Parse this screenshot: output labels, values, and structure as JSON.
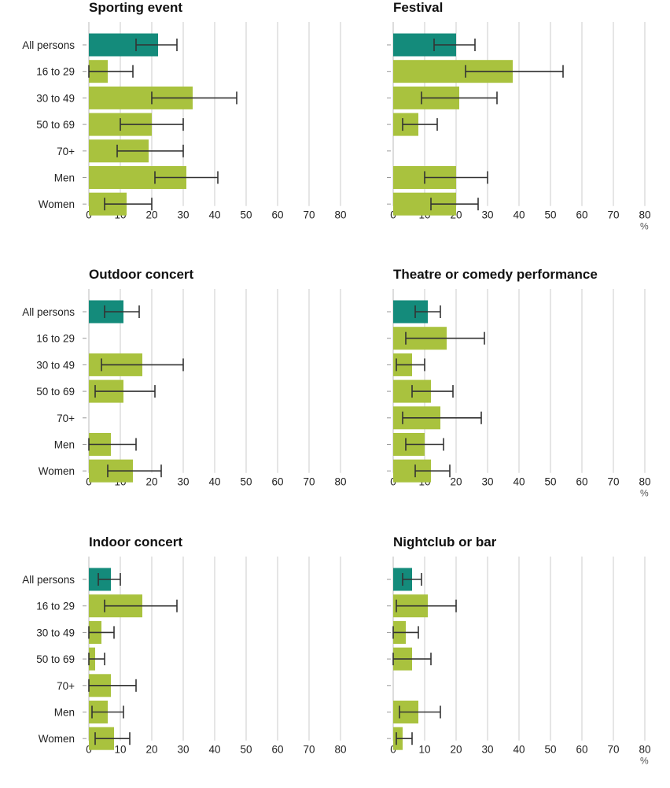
{
  "chart_data": [
    {
      "type": "bar",
      "title": "Sporting event",
      "categories": [
        "All persons",
        "16 to 29",
        "30 to 49",
        "50 to 69",
        "70+",
        "Men",
        "Women"
      ],
      "values": [
        22,
        6,
        33,
        20,
        19,
        31,
        12
      ],
      "error_low": [
        15,
        0,
        20,
        10,
        9,
        21,
        5
      ],
      "error_high": [
        28,
        14,
        47,
        30,
        30,
        41,
        20
      ],
      "xlim": [
        0,
        80
      ],
      "ticks": [
        "0",
        "10",
        "20",
        "30",
        "40",
        "50",
        "60",
        "70",
        "80"
      ],
      "unit": ""
    },
    {
      "type": "bar",
      "title": "Festival",
      "categories": [
        "All persons",
        "16 to 29",
        "30 to 49",
        "50 to 69",
        "70+",
        "Men",
        "Women"
      ],
      "values": [
        20,
        38,
        21,
        8,
        null,
        20,
        20
      ],
      "error_low": [
        13,
        23,
        9,
        3,
        null,
        10,
        12
      ],
      "error_high": [
        26,
        54,
        33,
        14,
        null,
        30,
        27
      ],
      "xlim": [
        0,
        80
      ],
      "ticks": [
        "0",
        "10",
        "20",
        "30",
        "40",
        "50",
        "60",
        "70",
        "80"
      ],
      "unit": "%"
    },
    {
      "type": "bar",
      "title": "Outdoor concert",
      "categories": [
        "All persons",
        "16 to 29",
        "30 to 49",
        "50 to 69",
        "70+",
        "Men",
        "Women"
      ],
      "values": [
        11,
        null,
        17,
        11,
        null,
        7,
        14
      ],
      "error_low": [
        5,
        null,
        4,
        2,
        null,
        0,
        6
      ],
      "error_high": [
        16,
        null,
        30,
        21,
        null,
        15,
        23
      ],
      "xlim": [
        0,
        80
      ],
      "ticks": [
        "0",
        "10",
        "20",
        "30",
        "40",
        "50",
        "60",
        "70",
        "80"
      ],
      "unit": ""
    },
    {
      "type": "bar",
      "title": "Theatre or comedy performance",
      "categories": [
        "All persons",
        "16 to 29",
        "30 to 49",
        "50 to 69",
        "70+",
        "Men",
        "Women"
      ],
      "values": [
        11,
        17,
        6,
        12,
        15,
        10,
        12
      ],
      "error_low": [
        7,
        4,
        1,
        6,
        3,
        4,
        7
      ],
      "error_high": [
        15,
        29,
        10,
        19,
        28,
        16,
        18
      ],
      "xlim": [
        0,
        80
      ],
      "ticks": [
        "0",
        "10",
        "20",
        "30",
        "40",
        "50",
        "60",
        "70",
        "80"
      ],
      "unit": "%"
    },
    {
      "type": "bar",
      "title": "Indoor concert",
      "categories": [
        "All persons",
        "16 to 29",
        "30 to 49",
        "50 to 69",
        "70+",
        "Men",
        "Women"
      ],
      "values": [
        7,
        17,
        4,
        2,
        7,
        6,
        8
      ],
      "error_low": [
        3,
        5,
        0,
        0,
        0,
        1,
        2
      ],
      "error_high": [
        10,
        28,
        8,
        5,
        15,
        11,
        13
      ],
      "xlim": [
        0,
        80
      ],
      "ticks": [
        "0",
        "10",
        "20",
        "30",
        "40",
        "50",
        "60",
        "70",
        "80"
      ],
      "unit": ""
    },
    {
      "type": "bar",
      "title": "Nightclub or bar",
      "categories": [
        "All persons",
        "16 to 29",
        "30 to 49",
        "50 to 69",
        "70+",
        "Men",
        "Women"
      ],
      "values": [
        6,
        11,
        4,
        6,
        null,
        8,
        3
      ],
      "error_low": [
        3,
        1,
        0,
        0,
        null,
        2,
        1
      ],
      "error_high": [
        9,
        20,
        8,
        12,
        null,
        15,
        6
      ],
      "xlim": [
        0,
        80
      ],
      "ticks": [
        "0",
        "10",
        "20",
        "30",
        "40",
        "50",
        "60",
        "70",
        "80"
      ],
      "unit": "%"
    }
  ],
  "colors": {
    "highlight": "#148b7b",
    "bar": "#a9c23e",
    "grid": "#d4d4d4",
    "error": "#333333"
  }
}
